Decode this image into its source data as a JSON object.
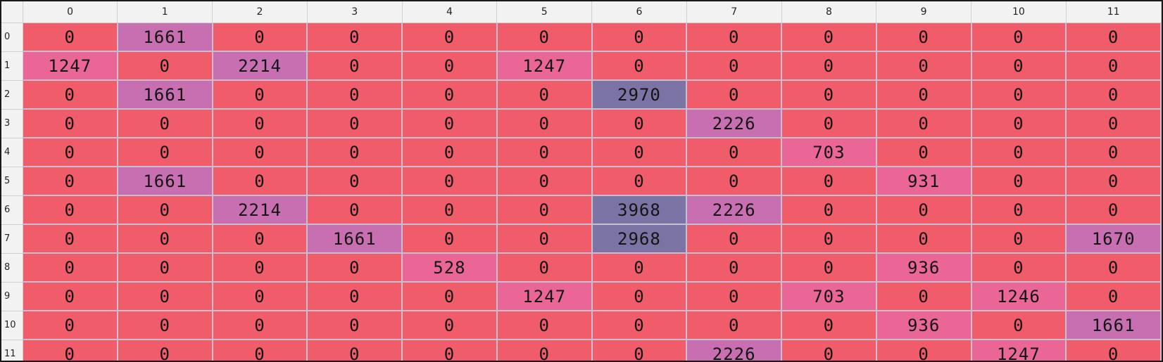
{
  "columns": [
    "0",
    "1",
    "2",
    "3",
    "4",
    "5",
    "6",
    "7",
    "8",
    "9",
    "10",
    "11"
  ],
  "rows": [
    {
      "label": "0",
      "values": [
        "0",
        "1661",
        "0",
        "0",
        "0",
        "0",
        "0",
        "0",
        "0",
        "0",
        "0",
        "0"
      ]
    },
    {
      "label": "1",
      "values": [
        "1247",
        "0",
        "2214",
        "0",
        "0",
        "1247",
        "0",
        "0",
        "0",
        "0",
        "0",
        "0"
      ]
    },
    {
      "label": "2",
      "values": [
        "0",
        "1661",
        "0",
        "0",
        "0",
        "0",
        "2970",
        "0",
        "0",
        "0",
        "0",
        "0"
      ]
    },
    {
      "label": "3",
      "values": [
        "0",
        "0",
        "0",
        "0",
        "0",
        "0",
        "0",
        "2226",
        "0",
        "0",
        "0",
        "0"
      ]
    },
    {
      "label": "4",
      "values": [
        "0",
        "0",
        "0",
        "0",
        "0",
        "0",
        "0",
        "0",
        "703",
        "0",
        "0",
        "0"
      ]
    },
    {
      "label": "5",
      "values": [
        "0",
        "1661",
        "0",
        "0",
        "0",
        "0",
        "0",
        "0",
        "0",
        "931",
        "0",
        "0"
      ]
    },
    {
      "label": "6",
      "values": [
        "0",
        "0",
        "2214",
        "0",
        "0",
        "0",
        "3968",
        "2226",
        "0",
        "0",
        "0",
        "0"
      ]
    },
    {
      "label": "7",
      "values": [
        "0",
        "0",
        "0",
        "1661",
        "0",
        "0",
        "2968",
        "0",
        "0",
        "0",
        "0",
        "1670"
      ]
    },
    {
      "label": "8",
      "values": [
        "0",
        "0",
        "0",
        "0",
        "528",
        "0",
        "0",
        "0",
        "0",
        "936",
        "0",
        "0"
      ]
    },
    {
      "label": "9",
      "values": [
        "0",
        "0",
        "0",
        "0",
        "0",
        "1247",
        "0",
        "0",
        "703",
        "0",
        "1246",
        "0"
      ]
    },
    {
      "label": "10",
      "values": [
        "0",
        "0",
        "0",
        "0",
        "0",
        "0",
        "0",
        "0",
        "0",
        "936",
        "0",
        "1661"
      ]
    },
    {
      "label": "11",
      "values": [
        "0",
        "0",
        "0",
        "0",
        "0",
        "0",
        "0",
        "2226",
        "0",
        "0",
        "1247",
        "0"
      ]
    }
  ],
  "colors": {
    "zero": "#f05c6a",
    "low": "#ea6696",
    "mid": "#c86fb2",
    "high": "#7b73a3"
  }
}
